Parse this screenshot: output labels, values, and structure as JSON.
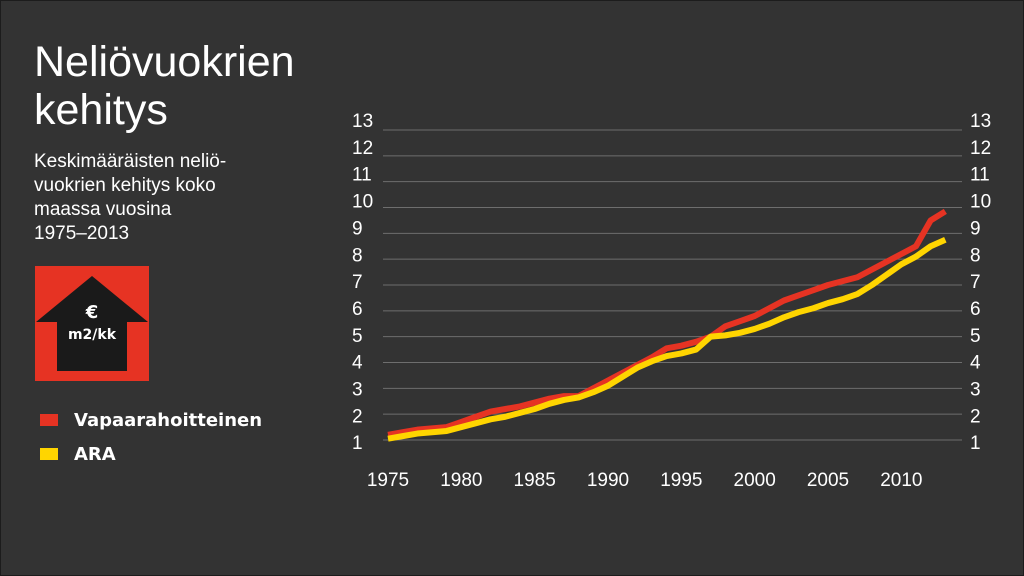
{
  "title_lines": [
    "Neliövuokrien",
    "kehitys"
  ],
  "subtitle_lines": [
    "Keskimääräisten neliö-",
    "vuokrien kehitys koko",
    "maassa vuosina",
    "1975–2013"
  ],
  "badge": {
    "symbol": "€",
    "unit": "m2/kk",
    "icon": "up-arrow-icon"
  },
  "colors": {
    "background": "#333333",
    "grid": "#6e6e6e",
    "badge": "#e63323",
    "arrow": "#1a1a1a"
  },
  "chart_data": {
    "type": "line",
    "title": "Neliövuokrien kehitys",
    "xlabel": "",
    "ylabel": "€ m2/kk",
    "x": [
      1975,
      1976,
      1977,
      1978,
      1979,
      1980,
      1981,
      1982,
      1983,
      1984,
      1985,
      1986,
      1987,
      1988,
      1989,
      1990,
      1991,
      1992,
      1993,
      1994,
      1995,
      1996,
      1997,
      1998,
      1999,
      2000,
      2001,
      2002,
      2003,
      2004,
      2005,
      2006,
      2007,
      2008,
      2009,
      2010,
      2011,
      2012,
      2013
    ],
    "x_ticks": [
      1975,
      1980,
      1985,
      1990,
      1995,
      2000,
      2005,
      2010
    ],
    "y_ticks": [
      1,
      2,
      3,
      4,
      5,
      6,
      7,
      8,
      9,
      10,
      11,
      12,
      13
    ],
    "y_gridlines": [
      1,
      2,
      3,
      4,
      5,
      6,
      7,
      8,
      9,
      10,
      11,
      12,
      13
    ],
    "xlim": [
      1975,
      2014
    ],
    "ylim": [
      1,
      13
    ],
    "grid": true,
    "series": [
      {
        "name": "Vapaarahoitteinen",
        "color": "#e63323",
        "values": [
          1.2,
          1.3,
          1.4,
          1.45,
          1.5,
          1.7,
          1.9,
          2.1,
          2.2,
          2.3,
          2.45,
          2.6,
          2.7,
          2.7,
          3.0,
          3.3,
          3.6,
          3.9,
          4.2,
          4.55,
          4.65,
          4.8,
          5.0,
          5.4,
          5.6,
          5.8,
          6.1,
          6.4,
          6.6,
          6.8,
          7.0,
          7.15,
          7.3,
          7.6,
          7.9,
          8.2,
          8.5,
          9.5,
          9.85
        ]
      },
      {
        "name": "ARA",
        "color": "#ffd500",
        "values": [
          1.05,
          1.15,
          1.25,
          1.3,
          1.35,
          1.5,
          1.65,
          1.8,
          1.9,
          2.05,
          2.2,
          2.4,
          2.55,
          2.65,
          2.85,
          3.1,
          3.45,
          3.8,
          4.05,
          4.25,
          4.35,
          4.5,
          5.0,
          5.05,
          5.15,
          5.3,
          5.5,
          5.75,
          5.95,
          6.1,
          6.3,
          6.45,
          6.65,
          7.0,
          7.4,
          7.8,
          8.1,
          8.5,
          8.75
        ]
      }
    ]
  }
}
